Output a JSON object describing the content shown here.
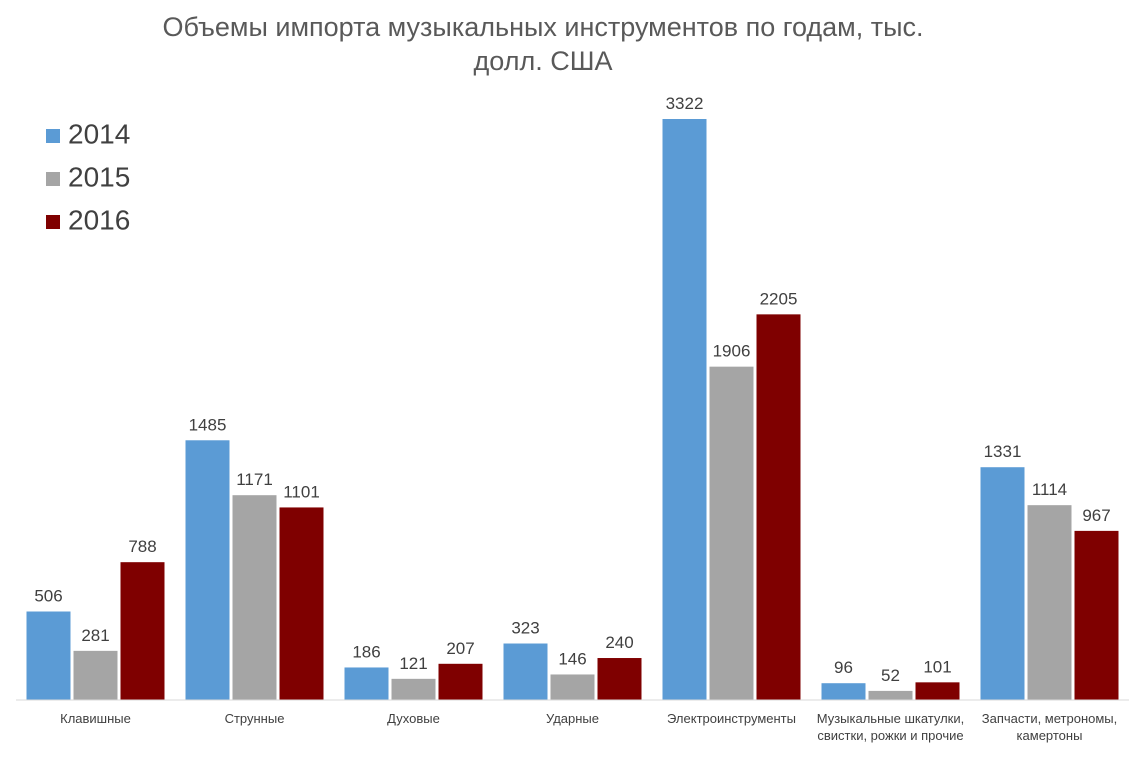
{
  "chart_data": {
    "type": "bar",
    "title": "Объемы импорта музыкальных инструментов по годам, тыс. долл. США",
    "categories": [
      "Клавишные",
      "Струнные",
      "Духовые",
      "Ударные",
      "Электроинструменты",
      "Музыкальные шкатулки, свистки, рожки и прочие",
      "Запчасти, метрономы, камертоны"
    ],
    "series": [
      {
        "name": "2014",
        "color": "#5b9bd5",
        "values": [
          506,
          1485,
          186,
          323,
          3322,
          96,
          1331
        ]
      },
      {
        "name": "2015",
        "color": "#a5a5a5",
        "values": [
          281,
          1171,
          121,
          146,
          1906,
          52,
          1114
        ]
      },
      {
        "name": "2016",
        "color": "#7f0000",
        "values": [
          788,
          1101,
          207,
          240,
          2205,
          101,
          967
        ]
      }
    ]
  }
}
